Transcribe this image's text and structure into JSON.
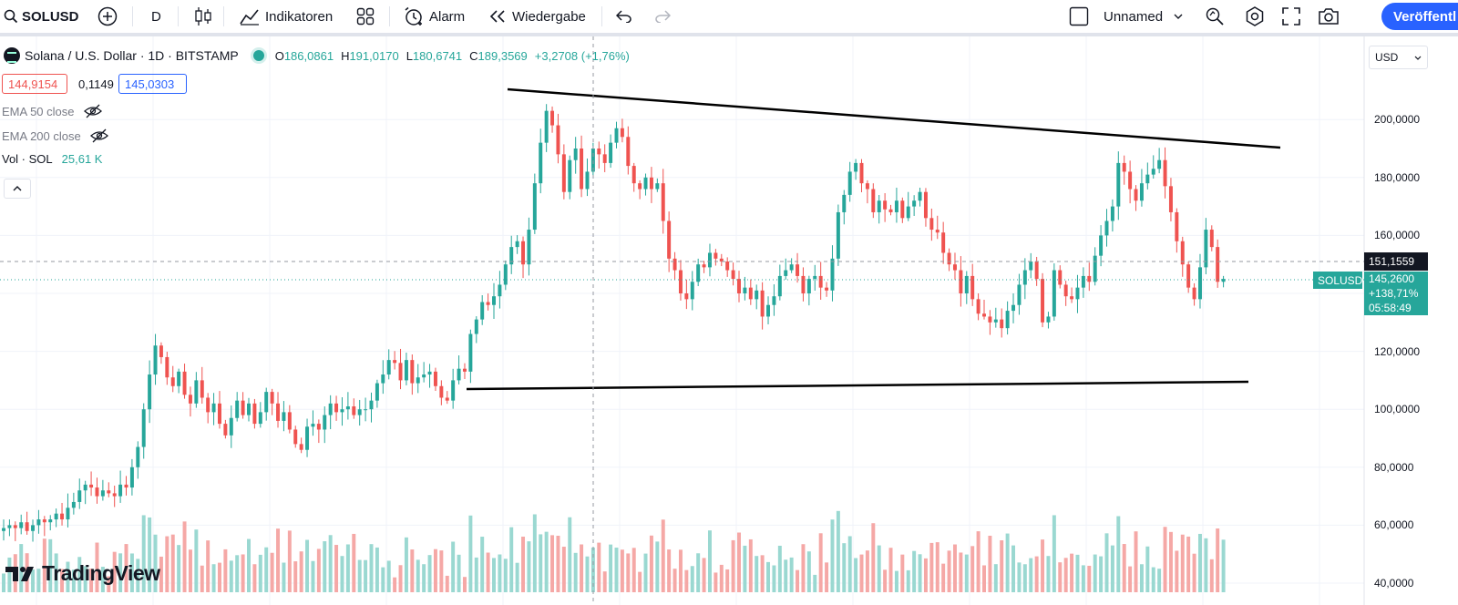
{
  "toolbar": {
    "symbol": "SOLUSD",
    "interval": "D",
    "indicators_label": "Indikatoren",
    "alert_label": "Alarm",
    "replay_label": "Wiedergabe",
    "layout_name": "Unnamed",
    "publish_label": "Veröffentl",
    "icons": [
      "search-icon",
      "add-symbol-icon",
      "candles-icon",
      "indicators-icon",
      "templates-icon",
      "alarm-icon",
      "replay-icon",
      "undo-icon",
      "redo-icon",
      "layout-icon",
      "chevron-down-icon",
      "quick-search-icon",
      "settings-icon",
      "fullscreen-icon",
      "camera-icon"
    ]
  },
  "legend": {
    "title": "Solana / U.S. Dollar · 1D · BITSTAMP",
    "o_label": "O",
    "o_value": "186,0861",
    "h_label": "H",
    "h_value": "191,0170",
    "l_label": "L",
    "l_value": "180,6741",
    "c_label": "C",
    "c_value": "189,3569",
    "change": "+3,2708 (+1,76%)",
    "bid": "144,9154",
    "spread": "0,1149",
    "ask": "145,0303"
  },
  "indicators": [
    {
      "label": "EMA 50 close"
    },
    {
      "label": "EMA 200 close"
    },
    {
      "label": "Vol · SOL",
      "value": "25,61 K"
    }
  ],
  "price_axis": {
    "currency": "USD",
    "ticks": [
      "200,0000",
      "180,0000",
      "160,0000",
      "140,0000",
      "120,0000",
      "100,0000",
      "80,0000",
      "60,0000",
      "40,0000"
    ],
    "crosshair_price": "151,1559",
    "symbol_tag": "SOLUSD",
    "last_price": "145,2600",
    "last_change": "+138,71%",
    "countdown": "05:58:49"
  },
  "colors": {
    "up": "#26a69a",
    "down": "#ef5350",
    "accent": "#2962ff",
    "up_vol": "#9ad8d1",
    "down_vol": "#f5a8a6"
  },
  "watermark": "TradingView",
  "chart_data": {
    "type": "candlestick",
    "ylim": [
      40,
      228
    ],
    "values": [
      59,
      60,
      59,
      61,
      58,
      60,
      62,
      61,
      62,
      64,
      62,
      66,
      68,
      72,
      74,
      73,
      70,
      72,
      71,
      70,
      74,
      73,
      80,
      87,
      100,
      112,
      122,
      118,
      111,
      108,
      113,
      105,
      102,
      110,
      104,
      99,
      102,
      95,
      91,
      97,
      103,
      98,
      102,
      95,
      99,
      106,
      102,
      96,
      99,
      93,
      88,
      86,
      94,
      95,
      93,
      98,
      102,
      99,
      100,
      101,
      98,
      100,
      100,
      103,
      109,
      112,
      117,
      116,
      110,
      117,
      109,
      111,
      112,
      113,
      108,
      104,
      103,
      110,
      114,
      113,
      126,
      131,
      137,
      136,
      139,
      143,
      150,
      156,
      158,
      150,
      162,
      178,
      192,
      203,
      198,
      188,
      175,
      186,
      190,
      176,
      182,
      190,
      188,
      185,
      192,
      197,
      194,
      184,
      178,
      176,
      180,
      176,
      178,
      165,
      152,
      148,
      140,
      138,
      144,
      150,
      149,
      154,
      152,
      151,
      148,
      145,
      140,
      142,
      138,
      141,
      132,
      136,
      139,
      146,
      148,
      150,
      146,
      140,
      145,
      146,
      142,
      141,
      152,
      168,
      174,
      182,
      185,
      178,
      176,
      168,
      172,
      169,
      168,
      172,
      166,
      170,
      172,
      175,
      166,
      162,
      161,
      154,
      150,
      148,
      140,
      146,
      138,
      133,
      132,
      130,
      131,
      128,
      134,
      136,
      143,
      148,
      151,
      145,
      130,
      132,
      148,
      143,
      139,
      138,
      142,
      146,
      144,
      153,
      160,
      165,
      170,
      185,
      182,
      176,
      172,
      178,
      181,
      183,
      186,
      177,
      168,
      158,
      150,
      142,
      138,
      149,
      162,
      156,
      144,
      145
    ]
  }
}
